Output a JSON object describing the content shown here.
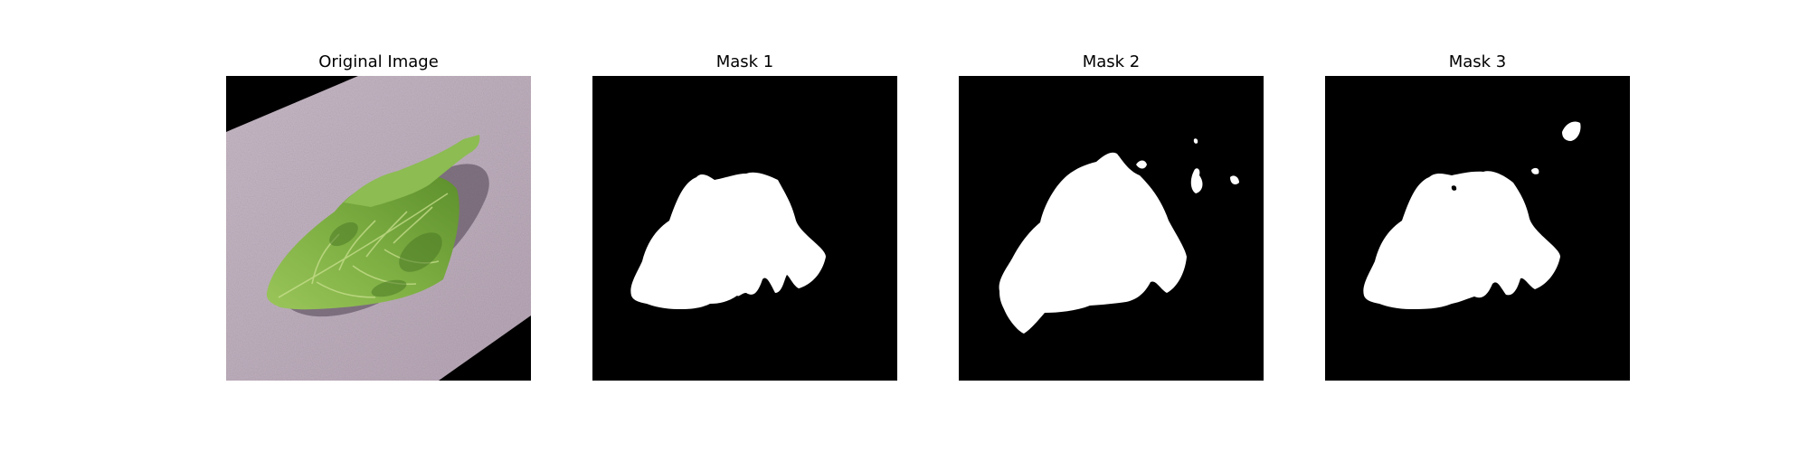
{
  "figure": {
    "panels": [
      {
        "id": "original",
        "title": "Original Image",
        "kind": "photo"
      },
      {
        "id": "mask-1",
        "title": "Mask 1",
        "kind": "binary-mask"
      },
      {
        "id": "mask-2",
        "title": "Mask 2",
        "kind": "binary-mask"
      },
      {
        "id": "mask-3",
        "title": "Mask 3",
        "kind": "binary-mask"
      }
    ]
  },
  "colors": {
    "background": "#ffffff",
    "mask_background": "#000000",
    "mask_foreground": "#ffffff",
    "paper": "#bfaebe",
    "leaf_light": "#a6cd5e",
    "leaf_mid": "#76a53a",
    "leaf_dark": "#3f6c1f"
  }
}
